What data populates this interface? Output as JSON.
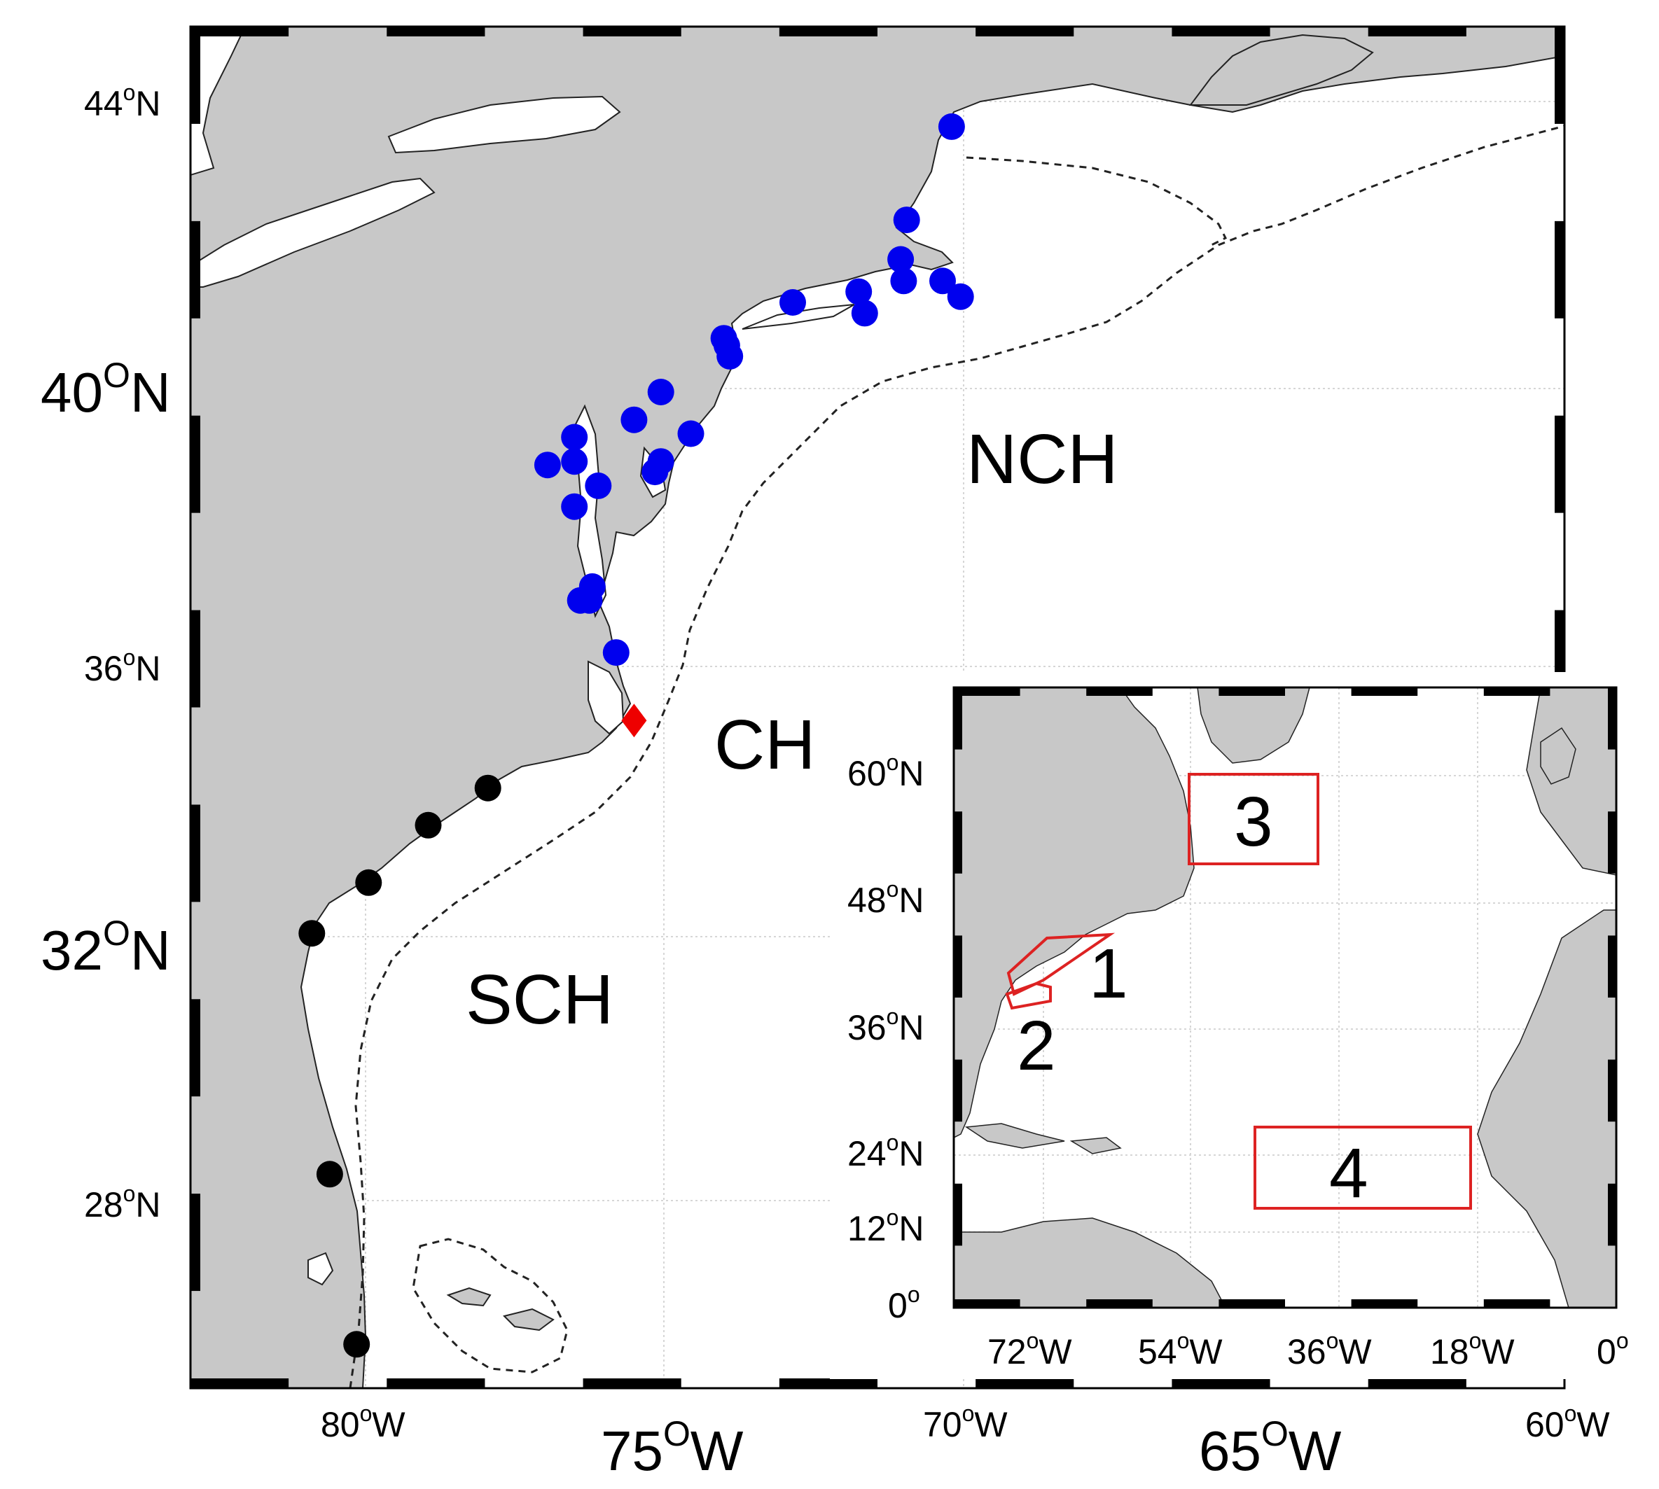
{
  "main_map": {
    "region_labels": {
      "nch": "NCH",
      "ch": "CH",
      "sch": "SCH"
    },
    "lat_labels": [
      {
        "deg": "44",
        "sup": "o",
        "hemi": "N"
      },
      {
        "deg": "40",
        "sup": "O",
        "hemi": "N"
      },
      {
        "deg": "36",
        "sup": "o",
        "hemi": "N"
      },
      {
        "deg": "32",
        "sup": "O",
        "hemi": "N"
      },
      {
        "deg": "28",
        "sup": "o",
        "hemi": "N"
      }
    ],
    "lon_labels": [
      {
        "deg": "80",
        "sup": "o",
        "hemi": "W"
      },
      {
        "deg": "75",
        "sup": "O",
        "hemi": "W"
      },
      {
        "deg": "70",
        "sup": "o",
        "hemi": "W"
      },
      {
        "deg": "65",
        "sup": "O",
        "hemi": "W"
      },
      {
        "deg": "60",
        "sup": "o",
        "hemi": "W"
      }
    ],
    "stations_north": [
      {
        "lon": -70.2,
        "lat": 43.65
      },
      {
        "lon": -70.95,
        "lat": 42.35
      },
      {
        "lon": -71.05,
        "lat": 41.8
      },
      {
        "lon": -71.0,
        "lat": 41.5
      },
      {
        "lon": -70.35,
        "lat": 41.5
      },
      {
        "lon": -70.05,
        "lat": 41.28
      },
      {
        "lon": -71.75,
        "lat": 41.35
      },
      {
        "lon": -71.65,
        "lat": 41.05
      },
      {
        "lon": -72.85,
        "lat": 41.2
      },
      {
        "lon": -74.0,
        "lat": 40.7
      },
      {
        "lon": -73.95,
        "lat": 40.6
      },
      {
        "lon": -73.9,
        "lat": 40.45
      },
      {
        "lon": -75.05,
        "lat": 39.95
      },
      {
        "lon": -75.5,
        "lat": 39.55
      },
      {
        "lon": -74.55,
        "lat": 39.35
      },
      {
        "lon": -76.5,
        "lat": 39.3
      },
      {
        "lon": -76.95,
        "lat": 38.9
      },
      {
        "lon": -76.5,
        "lat": 38.95
      },
      {
        "lon": -75.05,
        "lat": 38.95
      },
      {
        "lon": -75.15,
        "lat": 38.8
      },
      {
        "lon": -76.1,
        "lat": 38.6
      },
      {
        "lon": -76.5,
        "lat": 38.3
      },
      {
        "lon": -76.2,
        "lat": 37.15
      },
      {
        "lon": -76.4,
        "lat": 36.95
      },
      {
        "lon": -76.25,
        "lat": 36.95
      },
      {
        "lon": -75.8,
        "lat": 36.2
      }
    ],
    "stations_south": [
      {
        "lon": -77.95,
        "lat": 34.2
      },
      {
        "lon": -78.95,
        "lat": 33.65
      },
      {
        "lon": -79.95,
        "lat": 32.8
      },
      {
        "lon": -80.9,
        "lat": 32.05
      },
      {
        "lon": -80.6,
        "lat": 28.4
      },
      {
        "lon": -80.15,
        "lat": 25.75
      }
    ],
    "cape_hatteras": {
      "lon": -75.5,
      "lat": 35.2
    }
  },
  "inset_map": {
    "lat_labels": [
      {
        "deg": "60",
        "sup": "o",
        "hemi": "N"
      },
      {
        "deg": "48",
        "sup": "o",
        "hemi": "N"
      },
      {
        "deg": "36",
        "sup": "o",
        "hemi": "N"
      },
      {
        "deg": "24",
        "sup": "o",
        "hemi": "N"
      },
      {
        "deg": "12",
        "sup": "o",
        "hemi": "N"
      },
      {
        "deg": "0",
        "sup": "o",
        "hemi": ""
      }
    ],
    "lon_labels": [
      {
        "deg": "72",
        "sup": "o",
        "hemi": "W"
      },
      {
        "deg": "54",
        "sup": "o",
        "hemi": "W"
      },
      {
        "deg": "36",
        "sup": "o",
        "hemi": "W"
      },
      {
        "deg": "18",
        "sup": "o",
        "hemi": "W"
      },
      {
        "deg": "0",
        "sup": "o",
        "hemi": ""
      }
    ],
    "boxes": [
      {
        "label": "1"
      },
      {
        "label": "2"
      },
      {
        "label": "3"
      },
      {
        "label": "4"
      }
    ]
  },
  "colors": {
    "land": "#c8c8c8",
    "north_stations": "#0000ee",
    "south_stations": "#000000",
    "cape_hatteras": "#ee0000",
    "study_boxes": "#dd2222"
  }
}
